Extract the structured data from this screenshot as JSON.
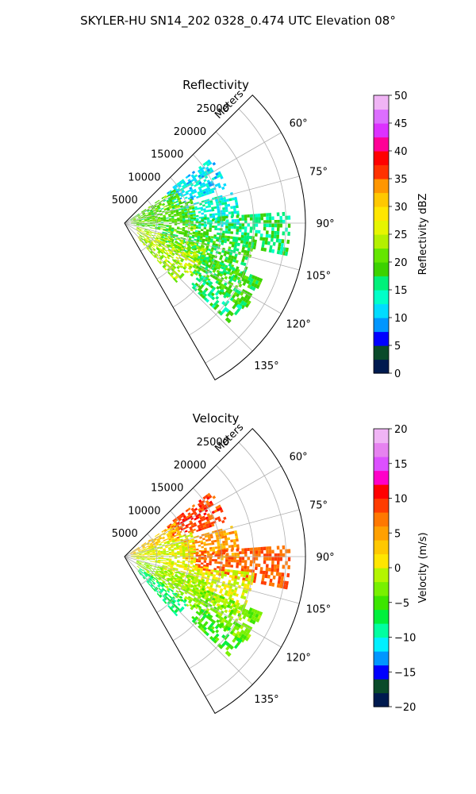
{
  "suptitle": "SKYLER-HU  SN14_202  0328_0.474 UTC Elevation 08°",
  "chart_data": [
    {
      "type": "polar-ppi",
      "title": "Reflectivity",
      "radial_axis_label": "Meters",
      "radial_ticks": [
        "5000",
        "10000",
        "15000",
        "20000",
        "25000"
      ],
      "radial_tick_values": [
        5000,
        10000,
        15000,
        20000,
        25000
      ],
      "rlim": [
        0,
        28000
      ],
      "azimuth_range_deg": [
        45,
        150
      ],
      "azimuth_ticks": [
        "60°",
        "75°",
        "90°",
        "105°",
        "120°",
        "135°"
      ],
      "azimuth_tick_values": [
        60,
        75,
        90,
        105,
        120,
        135
      ],
      "grid": true,
      "colorbar": {
        "label": "Reflectivity dBZ",
        "vmin": 0,
        "vmax": 50,
        "ticks": [
          "0",
          "5",
          "10",
          "15",
          "20",
          "25",
          "30",
          "35",
          "40",
          "45",
          "50"
        ],
        "tick_values": [
          0,
          5,
          10,
          15,
          20,
          25,
          30,
          35,
          40,
          45,
          50
        ]
      },
      "echo_regions": [
        {
          "az": [
            53,
            70
          ],
          "range_m": [
            8000,
            16500
          ],
          "value": 12
        },
        {
          "az": [
            56,
            72
          ],
          "range_m": [
            1000,
            9000
          ],
          "value": 20
        },
        {
          "az": [
            74,
            92
          ],
          "range_m": [
            9000,
            17500
          ],
          "value": 13
        },
        {
          "az": [
            86,
            101
          ],
          "range_m": [
            11000,
            25500
          ],
          "value": 17
        },
        {
          "az": [
            70,
            100
          ],
          "range_m": [
            1000,
            11000
          ],
          "value": 20
        },
        {
          "az": [
            97,
            118
          ],
          "range_m": [
            6000,
            20000
          ],
          "value": 18
        },
        {
          "az": [
            106,
            128
          ],
          "range_m": [
            2000,
            13000
          ],
          "value": 24
        },
        {
          "az": [
            112,
            126
          ],
          "range_m": [
            13000,
            23000
          ],
          "value": 19
        },
        {
          "az": [
            124,
            133
          ],
          "range_m": [
            14000,
            22000
          ],
          "value": 17
        },
        {
          "az": [
            125,
            138
          ],
          "range_m": [
            3000,
            12000
          ],
          "value": 23
        }
      ]
    },
    {
      "type": "polar-ppi",
      "title": "Velocity",
      "radial_axis_label": "Meters",
      "radial_ticks": [
        "5000",
        "10000",
        "15000",
        "20000",
        "25000"
      ],
      "radial_tick_values": [
        5000,
        10000,
        15000,
        20000,
        25000
      ],
      "rlim": [
        0,
        28000
      ],
      "azimuth_range_deg": [
        45,
        150
      ],
      "azimuth_ticks": [
        "60°",
        "75°",
        "90°",
        "105°",
        "120°",
        "135°"
      ],
      "azimuth_tick_values": [
        60,
        75,
        90,
        105,
        120,
        135
      ],
      "grid": true,
      "colorbar": {
        "label": "Velocity (m/s)",
        "vmin": -20,
        "vmax": 20,
        "ticks": [
          "−20",
          "−15",
          "−10",
          "−5",
          "0",
          "5",
          "10",
          "15",
          "20"
        ],
        "tick_values": [
          -20,
          -15,
          -10,
          -5,
          0,
          5,
          10,
          15,
          20
        ]
      },
      "echo_regions": [
        {
          "az": [
            53,
            70
          ],
          "range_m": [
            8000,
            16500
          ],
          "value": 9
        },
        {
          "az": [
            56,
            72
          ],
          "range_m": [
            1000,
            9000
          ],
          "value": 3
        },
        {
          "az": [
            74,
            92
          ],
          "range_m": [
            9000,
            17500
          ],
          "value": 5
        },
        {
          "az": [
            86,
            101
          ],
          "range_m": [
            11000,
            25500
          ],
          "value": 8
        },
        {
          "az": [
            70,
            100
          ],
          "range_m": [
            1000,
            11000
          ],
          "value": 0
        },
        {
          "az": [
            97,
            118
          ],
          "range_m": [
            6000,
            20000
          ],
          "value": 0
        },
        {
          "az": [
            106,
            128
          ],
          "range_m": [
            2000,
            13000
          ],
          "value": -2
        },
        {
          "az": [
            112,
            126
          ],
          "range_m": [
            13000,
            23000
          ],
          "value": -3
        },
        {
          "az": [
            124,
            133
          ],
          "range_m": [
            14000,
            22000
          ],
          "value": -5
        },
        {
          "az": [
            125,
            138
          ],
          "range_m": [
            3000,
            12000
          ],
          "value": -8
        }
      ]
    }
  ]
}
